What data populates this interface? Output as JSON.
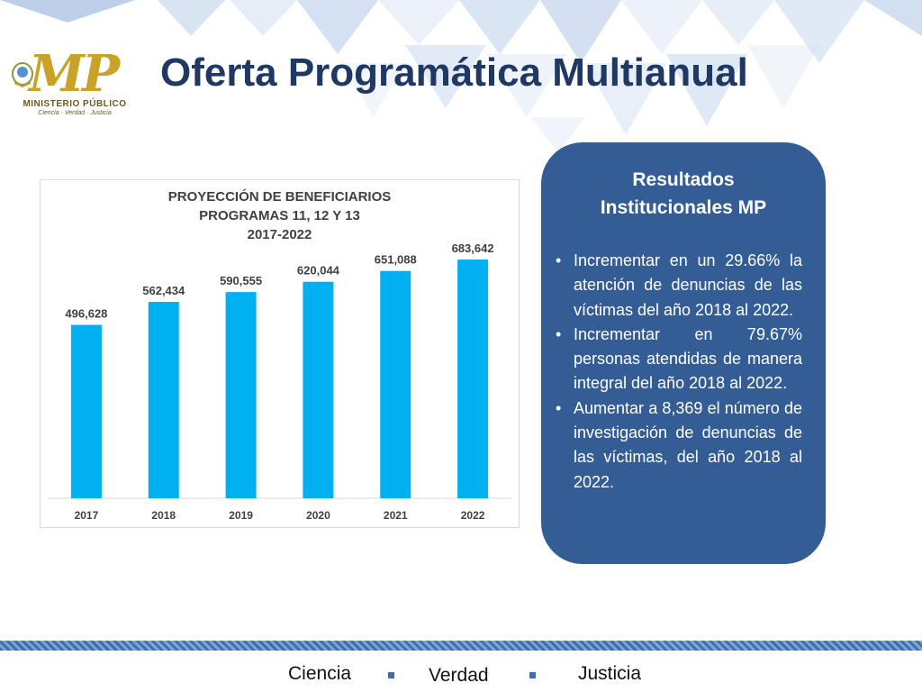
{
  "header": {
    "title": "Oferta Programática Multianual",
    "logo": {
      "mark": "MP",
      "name": "MINISTERIO PÚBLICO",
      "tagline": "Ciencia · Verdad · Justicia"
    }
  },
  "chart_data": {
    "type": "bar",
    "title_lines": [
      "PROYECCIÓN DE BENEFICIARIOS",
      "PROGRAMAS 11, 12 Y 13",
      "2017-2022"
    ],
    "categories": [
      "2017",
      "2018",
      "2019",
      "2020",
      "2021",
      "2022"
    ],
    "values": [
      496628,
      562434,
      590555,
      620044,
      651088,
      683642
    ],
    "data_labels": [
      "496,628",
      "562,434",
      "590,555",
      "620,044",
      "651,088",
      "683,642"
    ],
    "ylim": [
      0,
      800000
    ],
    "grid": false,
    "color": "#00b0f0"
  },
  "results": {
    "title_lines": [
      "Resultados",
      "Institucionales MP"
    ],
    "items": [
      "Incrementar en un 29.66% la atención de denuncias de las víctimas del año 2018 al 2022.",
      "Incrementar en 79.67% personas atendidas de manera integral del año 2018 al 2022.",
      "Aumentar a 8,369 el número de investigación de denuncias de las víctimas, del año 2018 al 2022."
    ],
    "bullet": "•",
    "bg_color": "#345d95"
  },
  "footer": {
    "words": [
      "Ciencia",
      "Verdad",
      "Justicia"
    ],
    "accent": "#3e6fb0"
  }
}
